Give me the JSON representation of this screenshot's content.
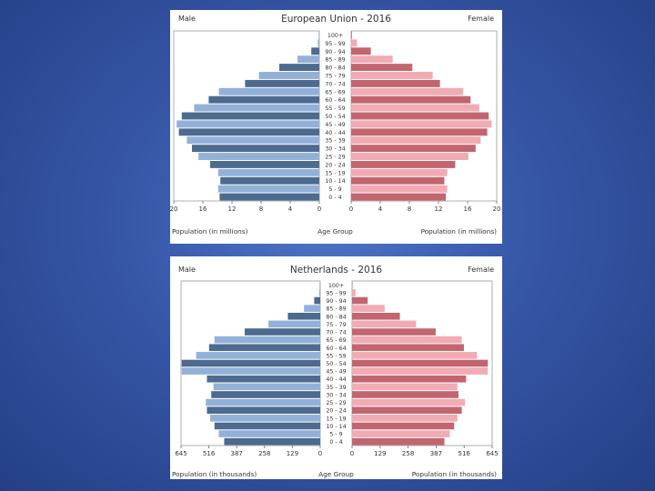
{
  "colors": {
    "background": "#3656a6",
    "male_dark": "#4d6a8f",
    "male_light": "#93b1d8",
    "female_dark": "#c2656f",
    "female_light": "#f1abb3",
    "border": "#999999"
  },
  "chart_data": [
    {
      "type": "bar",
      "orientation": "horizontal-population-pyramid",
      "title": "European Union - 2016",
      "left_label": "Male",
      "right_label": "Female",
      "xlabel_left": "Population (in millions)",
      "xlabel_center": "Age Group",
      "xlabel_right": "Population (in millions)",
      "xlim": [
        0,
        20
      ],
      "ticks": [
        "20",
        "16",
        "12",
        "8",
        "4",
        "0",
        "0",
        "4",
        "8",
        "12",
        "16",
        "20"
      ],
      "categories": [
        "0 - 4",
        "5 - 9",
        "10 - 14",
        "15 - 19",
        "20 - 24",
        "25 - 29",
        "30 - 34",
        "35 - 39",
        "40 - 44",
        "45 - 49",
        "50 - 54",
        "55 - 59",
        "60 - 64",
        "65 - 69",
        "70 - 74",
        "75 - 79",
        "80 - 84",
        "85 - 89",
        "90 - 94",
        "95 - 99",
        "100+"
      ],
      "series": [
        {
          "name": "Male",
          "values": [
            13.7,
            13.9,
            13.6,
            13.9,
            15.0,
            16.6,
            17.5,
            18.2,
            19.3,
            19.6,
            18.9,
            17.2,
            15.2,
            13.8,
            10.2,
            8.3,
            5.5,
            3.0,
            1.1,
            0.2,
            0.03
          ]
        },
        {
          "name": "Female",
          "values": [
            13.0,
            13.2,
            12.8,
            13.2,
            14.3,
            16.1,
            17.1,
            17.8,
            18.7,
            19.3,
            18.9,
            17.6,
            16.4,
            15.4,
            12.2,
            11.2,
            8.4,
            5.7,
            2.7,
            0.8,
            0.1
          ]
        }
      ]
    },
    {
      "type": "bar",
      "orientation": "horizontal-population-pyramid",
      "title": "Netherlands - 2016",
      "left_label": "Male",
      "right_label": "Female",
      "xlabel_left": "Population (in thousands)",
      "xlabel_center": "Age Group",
      "xlabel_right": "Population (in thousands)",
      "xlim": [
        0,
        645
      ],
      "ticks": [
        "645",
        "516",
        "387",
        "258",
        "129",
        "0",
        "0",
        "129",
        "258",
        "387",
        "516",
        "645"
      ],
      "categories": [
        "0 - 4",
        "5 - 9",
        "10 - 14",
        "15 - 19",
        "20 - 24",
        "25 - 29",
        "30 - 34",
        "35 - 39",
        "40 - 44",
        "45 - 49",
        "50 - 54",
        "55 - 59",
        "60 - 64",
        "65 - 69",
        "70 - 74",
        "75 - 79",
        "80 - 84",
        "85 - 89",
        "90 - 94",
        "95 - 99",
        "100+"
      ],
      "series": [
        {
          "name": "Male",
          "values": [
            445,
            470,
            490,
            510,
            525,
            530,
            505,
            495,
            525,
            642,
            642,
            575,
            515,
            490,
            350,
            240,
            150,
            75,
            28,
            5,
            1
          ]
        },
        {
          "name": "Female",
          "values": [
            425,
            450,
            470,
            485,
            505,
            520,
            490,
            485,
            525,
            625,
            625,
            575,
            515,
            505,
            385,
            295,
            220,
            150,
            72,
            16,
            2
          ]
        }
      ]
    }
  ]
}
